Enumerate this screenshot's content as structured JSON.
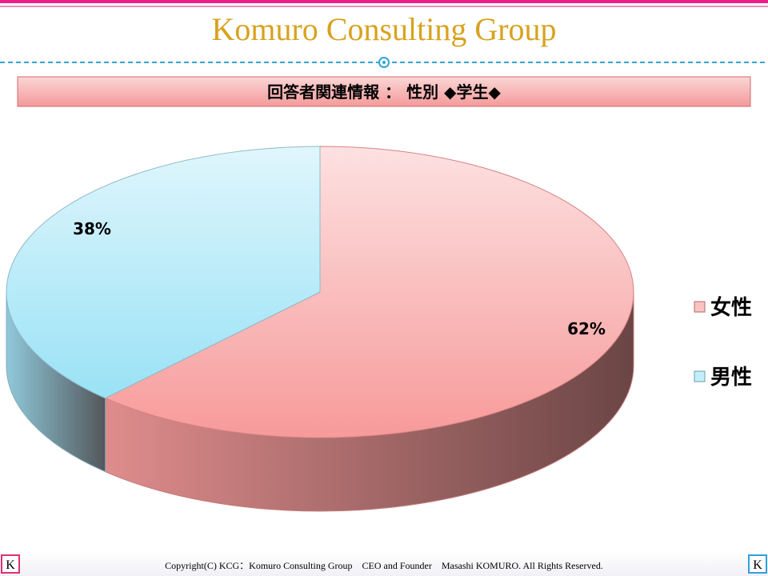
{
  "header": {
    "title": "Komuro Consulting Group"
  },
  "footer": {
    "copyright": "Copyright(C) KCG：Komuro Consulting Group　CEO and Founder　Masashi KOMURO. All Rights Reserved.",
    "logo": "K"
  },
  "chart_data": {
    "type": "pie",
    "title": "回答者関連情報 ： 性別 ◆学生◆",
    "categories": [
      "女性",
      "男性"
    ],
    "values": [
      62,
      38
    ],
    "value_labels": [
      "62%",
      "38%"
    ],
    "colors": [
      "#f79a9a",
      "#99e2f6"
    ],
    "legend": "right"
  }
}
